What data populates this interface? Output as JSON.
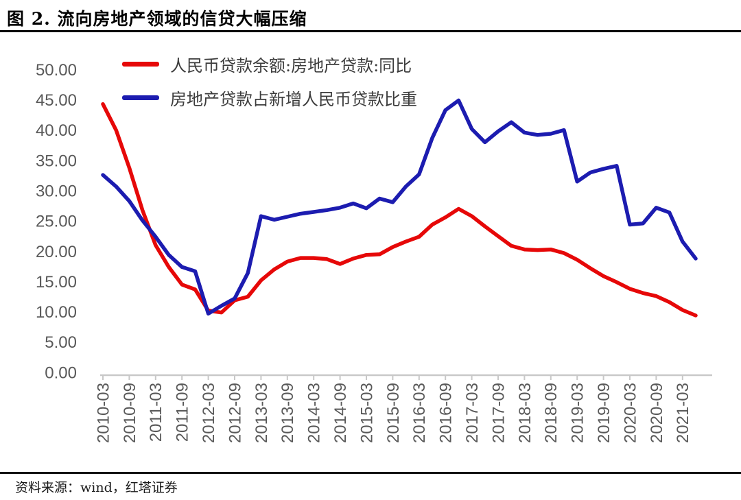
{
  "title": "图 2. 流向房地产领域的信贷大幅压缩",
  "source": "资料来源：wind，红塔证券",
  "colors": {
    "red": "#e60808",
    "blue": "#1c1cb0",
    "axis_line": "#c8c8c8",
    "tick_text": "#595959"
  },
  "chart_data": {
    "type": "line",
    "title": "图 2. 流向房地产领域的信贷大幅压缩",
    "x": [
      "2010-03",
      "2010-06",
      "2010-09",
      "2010-12",
      "2011-03",
      "2011-06",
      "2011-09",
      "2011-12",
      "2012-03",
      "2012-06",
      "2012-09",
      "2012-12",
      "2013-03",
      "2013-06",
      "2013-09",
      "2013-12",
      "2014-03",
      "2014-06",
      "2014-09",
      "2014-12",
      "2015-03",
      "2015-06",
      "2015-09",
      "2015-12",
      "2016-03",
      "2016-06",
      "2016-09",
      "2016-12",
      "2017-03",
      "2017-06",
      "2017-09",
      "2017-12",
      "2018-03",
      "2018-06",
      "2018-09",
      "2018-12",
      "2019-03",
      "2019-06",
      "2019-09",
      "2019-12",
      "2020-03",
      "2020-06",
      "2020-09",
      "2020-12",
      "2021-03",
      "2021-06"
    ],
    "x_tick_labels": [
      "2010-03",
      "2010-09",
      "2011-03",
      "2011-09",
      "2012-03",
      "2012-09",
      "2013-03",
      "2013-09",
      "2014-03",
      "2014-09",
      "2015-03",
      "2015-09",
      "2016-03",
      "2016-09",
      "2017-03",
      "2017-09",
      "2018-03",
      "2018-09",
      "2019-03",
      "2019-09",
      "2020-03",
      "2020-09",
      "2021-03"
    ],
    "y_tick_labels": [
      "0.00",
      "5.00",
      "10.00",
      "15.00",
      "20.00",
      "25.00",
      "30.00",
      "35.00",
      "40.00",
      "45.00",
      "50.00"
    ],
    "ylim": [
      0,
      50
    ],
    "ytick_step": 5,
    "grid": false,
    "legend_position": "top-left",
    "series": [
      {
        "name": "人民币贷款余额:房地产贷款:同比",
        "color": "#e60808",
        "values": [
          44.3,
          40.0,
          33.8,
          26.8,
          21.0,
          17.4,
          14.5,
          13.7,
          10.2,
          9.9,
          11.9,
          12.5,
          15.2,
          17.0,
          18.3,
          18.9,
          18.9,
          18.7,
          17.9,
          18.8,
          19.4,
          19.5,
          20.7,
          21.6,
          22.4,
          24.4,
          25.6,
          27.0,
          25.8,
          24.1,
          22.5,
          20.9,
          20.3,
          20.2,
          20.3,
          19.7,
          18.6,
          17.2,
          15.9,
          14.9,
          13.8,
          13.1,
          12.6,
          11.6,
          10.3,
          9.4
        ]
      },
      {
        "name": "房地产贷款占新增人民币贷款比重",
        "color": "#1c1cb0",
        "values": [
          32.6,
          30.7,
          28.3,
          25.1,
          22.4,
          19.4,
          17.4,
          16.7,
          9.7,
          11.0,
          12.2,
          16.4,
          25.8,
          25.2,
          25.7,
          26.2,
          26.5,
          26.8,
          27.2,
          27.9,
          27.1,
          28.7,
          28.1,
          30.7,
          32.7,
          38.7,
          43.3,
          44.9,
          40.2,
          38.0,
          39.8,
          41.3,
          39.6,
          39.2,
          39.4,
          40.0,
          31.5,
          33.0,
          33.6,
          34.1,
          24.4,
          24.6,
          27.2,
          26.4,
          21.6,
          18.8
        ]
      }
    ]
  }
}
